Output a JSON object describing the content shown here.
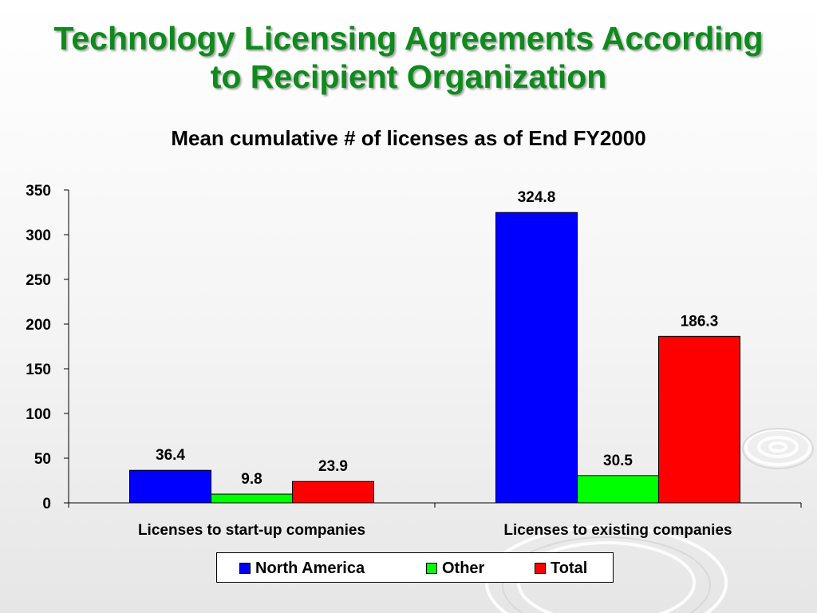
{
  "slide": {
    "title_line1": "Technology Licensing Agreements According",
    "title_line2": "to Recipient Organization"
  },
  "chart_data": {
    "type": "bar",
    "title": "Mean cumulative # of licenses as of End FY2000",
    "categories": [
      "Licenses to start-up companies",
      "Licenses to existing companies"
    ],
    "series": [
      {
        "name": "North America",
        "color": "#0000ff",
        "values": [
          36.4,
          324.8
        ]
      },
      {
        "name": "Other",
        "color": "#00ff00",
        "values": [
          9.8,
          30.5
        ]
      },
      {
        "name": "Total",
        "color": "#ff0000",
        "values": [
          23.9,
          186.3
        ]
      }
    ],
    "ylim": [
      0,
      350
    ],
    "yticks": [
      0,
      50,
      100,
      150,
      200,
      250,
      300,
      350
    ],
    "grid": false,
    "legend_position": "bottom"
  }
}
